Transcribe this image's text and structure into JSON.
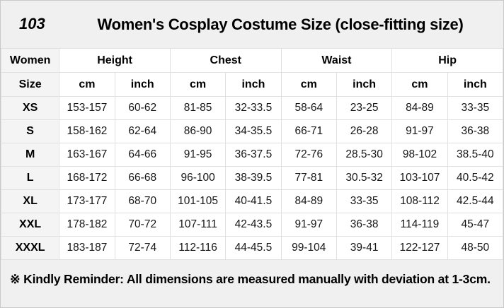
{
  "page": {
    "code": "103",
    "title": "Women's Cosplay Costume Size (close-fitting size)",
    "note": "※ Kindly Reminder: All dimensions are measured manually with deviation at 1-3cm."
  },
  "colors": {
    "page_background": "#f0f0f0",
    "cell_background": "#ffffff",
    "label_column_background": "#f4f4f4",
    "border": "#e0e0e0",
    "text": "#000000"
  },
  "table": {
    "corner_top": "Women",
    "corner_bottom": "Size",
    "groups": [
      "Height",
      "Chest",
      "Waist",
      "Hip"
    ],
    "units": [
      "cm",
      "inch"
    ],
    "rows": [
      {
        "size": "XS",
        "values": [
          "153-157",
          "60-62",
          "81-85",
          "32-33.5",
          "58-64",
          "23-25",
          "84-89",
          "33-35"
        ]
      },
      {
        "size": "S",
        "values": [
          "158-162",
          "62-64",
          "86-90",
          "34-35.5",
          "66-71",
          "26-28",
          "91-97",
          "36-38"
        ]
      },
      {
        "size": "M",
        "values": [
          "163-167",
          "64-66",
          "91-95",
          "36-37.5",
          "72-76",
          "28.5-30",
          "98-102",
          "38.5-40"
        ]
      },
      {
        "size": "L",
        "values": [
          "168-172",
          "66-68",
          "96-100",
          "38-39.5",
          "77-81",
          "30.5-32",
          "103-107",
          "40.5-42"
        ]
      },
      {
        "size": "XL",
        "values": [
          "173-177",
          "68-70",
          "101-105",
          "40-41.5",
          "84-89",
          "33-35",
          "108-112",
          "42.5-44"
        ]
      },
      {
        "size": "XXL",
        "values": [
          "178-182",
          "70-72",
          "107-111",
          "42-43.5",
          "91-97",
          "36-38",
          "114-119",
          "45-47"
        ]
      },
      {
        "size": "XXXL",
        "values": [
          "183-187",
          "72-74",
          "112-116",
          "44-45.5",
          "99-104",
          "39-41",
          "122-127",
          "48-50"
        ]
      }
    ]
  }
}
